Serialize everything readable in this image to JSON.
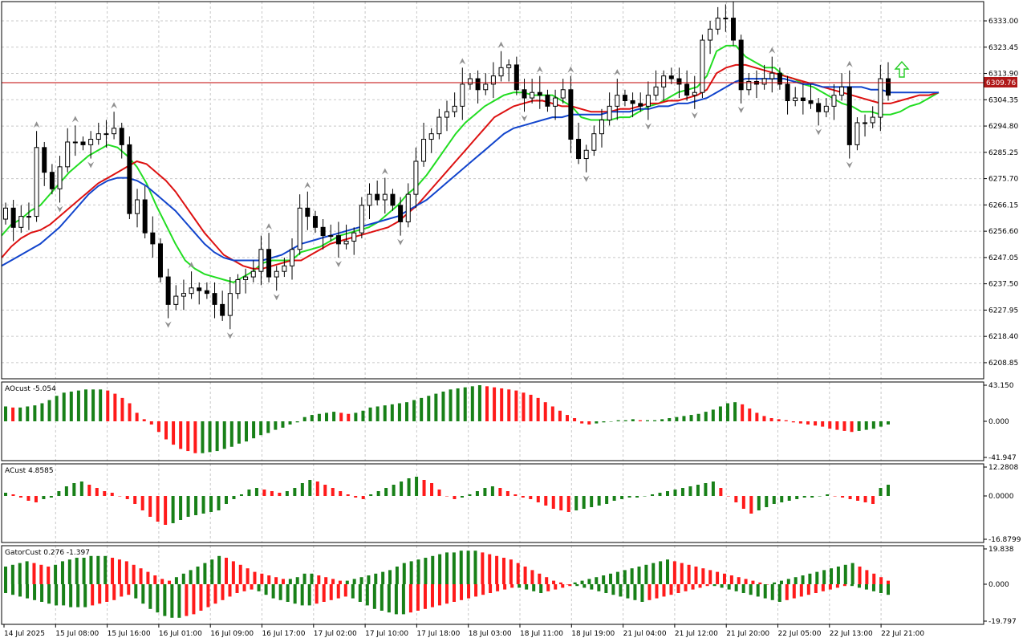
{
  "colors": {
    "background": "#ffffff",
    "grid": "#c8c8c8",
    "frame": "#000000",
    "candle_bull_fill": "#ffffff",
    "candle_bear_fill": "#000000",
    "candle_outline": "#000000",
    "price_line": "#c00000",
    "price_badge": "#b01818",
    "alligator_lips": "#22dd22",
    "alligator_teeth": "#dd1111",
    "alligator_jaw": "#1144cc",
    "hist_up": "#188018",
    "hist_down": "#ff1a1a",
    "fractal": "#909090",
    "signal_arrow": "#22cc22"
  },
  "main_chart": {
    "price_tag": "6309.76",
    "current_price": 6309.76,
    "y_ticks": [
      "6333.00",
      "6323.45",
      "6313.90",
      "6304.35",
      "6294.80",
      "6285.25",
      "6275.70",
      "6266.15",
      "6256.60",
      "6247.05",
      "6237.50",
      "6227.95",
      "6218.40",
      "6208.85"
    ]
  },
  "panels": {
    "ao": {
      "title": "AOcust -5.054",
      "ticks": [
        "43.150",
        "0.000",
        "-41.947"
      ]
    },
    "ac": {
      "title": "ACust 4.8585",
      "ticks": [
        "12.2808",
        "0.0000",
        "-16.8799"
      ]
    },
    "gator": {
      "title": "GatorCust 0.276 -1.397",
      "ticks": [
        "19.838",
        "0.000",
        "-19.797"
      ]
    }
  },
  "x_labels": [
    "14 Jul 2025",
    "15 Jul 08:00",
    "15 Jul 16:00",
    "16 Jul 01:00",
    "16 Jul 09:00",
    "16 Jul 17:00",
    "17 Jul 02:00",
    "17 Jul 10:00",
    "17 Jul 18:00",
    "18 Jul 03:00",
    "18 Jul 11:00",
    "18 Jul 19:00",
    "21 Jul 04:00",
    "21 Jul 12:00",
    "21 Jul 20:00",
    "22 Jul 05:00",
    "22 Jul 13:00",
    "22 Jul 21:00"
  ],
  "chart_data": {
    "type": "candlestick",
    "instrument_timeframe": "",
    "price_range": [
      6203.0,
      6340.0
    ],
    "close": [
      6265,
      6258,
      6262,
      6262,
      6287,
      6278,
      6272,
      6280,
      6289,
      6289,
      6288,
      6290,
      6292,
      6292,
      6294,
      6288,
      6263,
      6268,
      6256,
      6252,
      6240,
      6230,
      6233,
      6234,
      6236,
      6235,
      6234,
      6230,
      6226,
      6234,
      6239,
      6240,
      6242,
      6250,
      6240,
      6242,
      6244,
      6250,
      6265,
      6262,
      6258,
      6255,
      6255,
      6252,
      6253,
      6256,
      6266,
      6270,
      6268,
      6270,
      6266,
      6260,
      6270,
      6282,
      6290,
      6292,
      6298,
      6300,
      6302,
      6310,
      6312,
      6308,
      6310,
      6313,
      6316,
      6317,
      6308,
      6305,
      6307,
      6306,
      6302,
      6305,
      6308,
      6290,
      6283,
      6286,
      6292,
      6297,
      6302,
      6306,
      6304,
      6303,
      6302,
      6306,
      6309,
      6313,
      6312,
      6310,
      6306,
      6307,
      6326,
      6330,
      6334,
      6334,
      6326,
      6308,
      6311,
      6310,
      6312,
      6314,
      6310,
      6304,
      6305,
      6304,
      6303,
      6300,
      6302,
      6306,
      6309,
      6288,
      6296,
      6296,
      6298,
      6312,
      6306
    ],
    "series": [
      {
        "name": "Lips",
        "values": [
          6255,
          6259,
          6261,
          6264,
          6266,
          6270,
          6274,
          6278,
          6281,
          6284,
          6286,
          6288,
          6287,
          6284,
          6280,
          6274,
          6266,
          6259,
          6252,
          6246,
          6243,
          6241,
          6240,
          6239,
          6238,
          6240,
          6242,
          6245,
          6246,
          6246,
          6246,
          6249,
          6250,
          6251,
          6253,
          6255,
          6256,
          6257,
          6258,
          6260,
          6263,
          6266,
          6270,
          6273,
          6277,
          6282,
          6287,
          6292,
          6296,
          6299,
          6302,
          6304,
          6306,
          6307,
          6307,
          6306,
          6306,
          6306,
          6304,
          6302,
          6298,
          6297,
          6297,
          6297,
          6298,
          6298,
          6300,
          6302,
          6303,
          6305,
          6307,
          6308,
          6309,
          6313,
          6322,
          6324,
          6324,
          6320,
          6318,
          6316,
          6316,
          6313,
          6312,
          6310,
          6309,
          6307,
          6305,
          6303,
          6302,
          6300,
          6300,
          6299,
          6299,
          6300,
          6302,
          6303,
          6305,
          6307
        ]
      },
      {
        "name": "Teeth",
        "values": [
          6247,
          6251,
          6254,
          6256,
          6257,
          6259,
          6262,
          6265,
          6268,
          6271,
          6274,
          6276,
          6278,
          6280,
          6282,
          6281,
          6278,
          6275,
          6271,
          6266,
          6261,
          6256,
          6252,
          6248,
          6246,
          6244,
          6243,
          6243,
          6244,
          6245,
          6246,
          6246,
          6248,
          6250,
          6252,
          6253,
          6254,
          6255,
          6256,
          6257,
          6258,
          6260,
          6263,
          6266,
          6270,
          6274,
          6278,
          6282,
          6286,
          6290,
          6294,
          6298,
          6300,
          6302,
          6303,
          6304,
          6304,
          6303,
          6302,
          6302,
          6301,
          6300,
          6300,
          6300,
          6301,
          6301,
          6302,
          6303,
          6303,
          6304,
          6304,
          6305,
          6306,
          6308,
          6314,
          6316,
          6317,
          6317,
          6316,
          6315,
          6314,
          6313,
          6312,
          6311,
          6310,
          6309,
          6308,
          6307,
          6306,
          6305,
          6304,
          6303,
          6303,
          6304,
          6305,
          6306,
          6306,
          6307
        ]
      },
      {
        "name": "Jaw",
        "values": [
          6244,
          6246,
          6248,
          6250,
          6252,
          6255,
          6258,
          6262,
          6266,
          6270,
          6273,
          6275,
          6276,
          6276,
          6275,
          6273,
          6270,
          6267,
          6264,
          6260,
          6256,
          6252,
          6249,
          6247,
          6246,
          6246,
          6246,
          6246,
          6247,
          6248,
          6250,
          6252,
          6253,
          6254,
          6255,
          6256,
          6257,
          6258,
          6259,
          6260,
          6261,
          6262,
          6264,
          6266,
          6268,
          6271,
          6274,
          6277,
          6280,
          6283,
          6286,
          6289,
          6292,
          6294,
          6295,
          6296,
          6297,
          6298,
          6298,
          6299,
          6299,
          6299,
          6299,
          6300,
          6300,
          6300,
          6301,
          6301,
          6302,
          6302,
          6303,
          6303,
          6304,
          6305,
          6307,
          6309,
          6311,
          6312,
          6312,
          6312,
          6312,
          6312,
          6311,
          6310,
          6310,
          6309,
          6309,
          6309,
          6309,
          6309,
          6308,
          6308,
          6307,
          6307,
          6307,
          6307,
          6307,
          6307
        ]
      }
    ],
    "ao_values": [
      14,
      13,
      13,
      14,
      15,
      17,
      20,
      24,
      27,
      28,
      29,
      30,
      30,
      30,
      29,
      26,
      22,
      17,
      8,
      2,
      -3,
      -10,
      -17,
      -22,
      -26,
      -28,
      -30,
      -30,
      -29,
      -28,
      -26,
      -24,
      -21,
      -19,
      -16,
      -13,
      -11,
      -8,
      -6,
      -3,
      -1,
      4,
      6,
      7,
      8,
      9,
      8,
      7,
      8,
      10,
      13,
      14,
      15,
      16,
      17,
      18,
      20,
      22,
      24,
      26,
      28,
      30,
      31,
      32,
      33,
      34,
      33,
      32,
      31,
      30,
      29,
      27,
      25,
      22,
      18,
      14,
      10,
      6,
      3,
      -2,
      -3,
      -2,
      -1,
      0,
      1,
      1,
      2,
      1,
      1,
      1,
      2,
      3,
      4,
      5,
      6,
      7,
      9,
      11,
      14,
      17,
      18,
      16,
      12,
      8,
      5,
      3,
      2,
      1,
      -1,
      -2,
      -3,
      -4,
      -5,
      -7,
      -8,
      -9,
      -10,
      -9,
      -8,
      -7,
      -5,
      -3
    ],
    "ac_values": [
      2,
      1,
      -1,
      -3,
      -4,
      -2,
      -1,
      3,
      6,
      8,
      9,
      7,
      5,
      3,
      2,
      0,
      -2,
      -5,
      -9,
      -13,
      -16,
      -18,
      -17,
      -15,
      -13,
      -12,
      -11,
      -10,
      -9,
      -5,
      -2,
      1,
      4,
      5,
      4,
      3,
      2,
      3,
      5,
      8,
      10,
      9,
      7,
      5,
      3,
      1,
      -1,
      -2,
      1,
      3,
      5,
      7,
      9,
      11,
      12,
      10,
      8,
      4,
      0,
      -2,
      -1,
      1,
      3,
      5,
      6,
      5,
      3,
      1,
      -1,
      -2,
      -4,
      -6,
      -8,
      -9,
      -10,
      -9,
      -8,
      -7,
      -6,
      -5,
      -3,
      -2,
      -1,
      -1,
      0,
      1,
      2,
      3,
      4,
      5,
      6,
      7,
      8,
      9,
      5,
      0,
      -4,
      -8,
      -11,
      -9,
      -7,
      -5,
      -4,
      -3,
      -2,
      -1,
      -1,
      0,
      1,
      0,
      -1,
      -2,
      -3,
      -4,
      -5,
      5,
      7
    ],
    "gator_upper": [
      10,
      11,
      12,
      13,
      12,
      11,
      10,
      11,
      13,
      14,
      15,
      15,
      16,
      16,
      16,
      15,
      14,
      13,
      11,
      9,
      7,
      5,
      3,
      2,
      4,
      6,
      8,
      10,
      12,
      14,
      16,
      15,
      13,
      11,
      9,
      7,
      6,
      5,
      4,
      3,
      3,
      4,
      6,
      6,
      5,
      4,
      3,
      2,
      2,
      3,
      4,
      5,
      6,
      7,
      8,
      10,
      12,
      13,
      14,
      15,
      16,
      17,
      18,
      18,
      19,
      19,
      19,
      18,
      17,
      16,
      15,
      14,
      12,
      10,
      8,
      6,
      4,
      2,
      1,
      0,
      1,
      2,
      3,
      4,
      5,
      6,
      7,
      8,
      9,
      10,
      11,
      12,
      13,
      14,
      13,
      12,
      11,
      10,
      9,
      8,
      7,
      6,
      5,
      4,
      3,
      2,
      1,
      0,
      1,
      2,
      3,
      4,
      5,
      6,
      7,
      8,
      9,
      10,
      11,
      12,
      10,
      8,
      6,
      4,
      2
    ],
    "gator_lower": [
      -5,
      -6,
      -7,
      -8,
      -9,
      -10,
      -11,
      -12,
      -12,
      -13,
      -13,
      -13,
      -12,
      -11,
      -10,
      -9,
      -7,
      -6,
      -8,
      -11,
      -14,
      -16,
      -18,
      -19,
      -19,
      -18,
      -17,
      -15,
      -13,
      -11,
      -9,
      -7,
      -5,
      -4,
      -3,
      -4,
      -6,
      -8,
      -9,
      -10,
      -11,
      -12,
      -12,
      -11,
      -10,
      -9,
      -8,
      -7,
      -8,
      -10,
      -12,
      -14,
      -15,
      -16,
      -17,
      -17,
      -16,
      -15,
      -14,
      -13,
      -12,
      -11,
      -10,
      -9,
      -8,
      -7,
      -6,
      -5,
      -4,
      -3,
      -2,
      -2,
      -3,
      -4,
      -5,
      -4,
      -3,
      -2,
      -1,
      -1,
      -2,
      -3,
      -4,
      -5,
      -6,
      -7,
      -8,
      -9,
      -10,
      -9,
      -8,
      -7,
      -6,
      -5,
      -4,
      -3,
      -2,
      -1,
      -1,
      -2,
      -3,
      -4,
      -5,
      -6,
      -7,
      -8,
      -9,
      -10,
      -9,
      -8,
      -7,
      -6,
      -5,
      -4,
      -3,
      -2,
      -1,
      -1,
      -2,
      -3,
      -4,
      -5,
      -6
    ]
  }
}
